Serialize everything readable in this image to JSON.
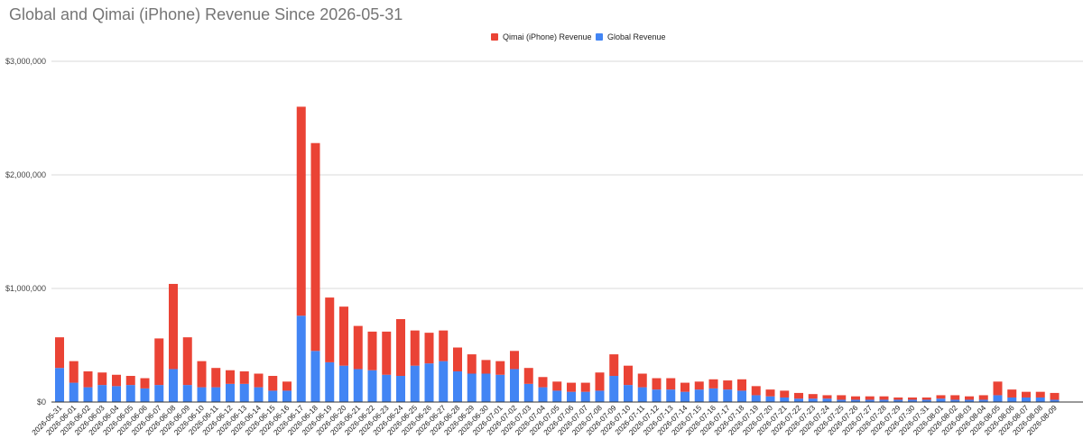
{
  "chart_data": {
    "type": "bar",
    "stacked": true,
    "title": "Global and Qimai (iPhone) Revenue Since 2026-05-31",
    "xlabel": "",
    "ylabel": "",
    "ylim": [
      0,
      3000000
    ],
    "yticks": [
      0,
      1000000,
      2000000,
      3000000
    ],
    "ytick_labels": [
      "$0",
      "$1,000,000",
      "$2,000,000",
      "$3,000,000"
    ],
    "grid": true,
    "legend_position": "top-center",
    "categories": [
      "2026-05-31",
      "2026-06-01",
      "2026-06-02",
      "2026-06-03",
      "2026-06-04",
      "2026-06-05",
      "2026-06-06",
      "2026-06-07",
      "2026-06-08",
      "2026-06-09",
      "2026-06-10",
      "2026-06-11",
      "2026-06-12",
      "2026-06-13",
      "2026-06-14",
      "2026-06-15",
      "2026-06-16",
      "2026-06-17",
      "2026-06-18",
      "2026-06-19",
      "2026-06-20",
      "2026-06-21",
      "2026-06-22",
      "2026-06-23",
      "2026-06-24",
      "2026-06-25",
      "2026-06-26",
      "2026-06-27",
      "2026-06-28",
      "2026-06-29",
      "2026-06-30",
      "2026-07-01",
      "2026-07-02",
      "2026-07-03",
      "2026-07-04",
      "2026-07-05",
      "2026-07-06",
      "2026-07-07",
      "2026-07-08",
      "2026-07-09",
      "2026-07-10",
      "2026-07-11",
      "2026-07-12",
      "2026-07-13",
      "2026-07-14",
      "2026-07-15",
      "2026-07-16",
      "2026-07-17",
      "2026-07-18",
      "2026-07-19",
      "2026-07-20",
      "2026-07-21",
      "2026-07-22",
      "2026-07-23",
      "2026-07-24",
      "2026-07-25",
      "2026-07-26",
      "2026-07-27",
      "2026-07-28",
      "2026-07-29",
      "2026-07-30",
      "2026-07-31",
      "2026-08-01",
      "2026-08-02",
      "2026-08-03",
      "2026-08-04",
      "2026-08-05",
      "2026-08-06",
      "2026-08-07",
      "2026-08-08",
      "2026-08-09"
    ],
    "series": [
      {
        "name": "Global Revenue",
        "color": "#4285f4",
        "values": [
          300000,
          170000,
          130000,
          150000,
          140000,
          150000,
          120000,
          150000,
          290000,
          150000,
          130000,
          130000,
          160000,
          160000,
          130000,
          100000,
          100000,
          760000,
          450000,
          350000,
          320000,
          290000,
          280000,
          240000,
          230000,
          320000,
          340000,
          360000,
          270000,
          250000,
          250000,
          240000,
          290000,
          160000,
          130000,
          100000,
          90000,
          90000,
          100000,
          230000,
          150000,
          130000,
          110000,
          110000,
          90000,
          110000,
          120000,
          110000,
          100000,
          60000,
          50000,
          40000,
          30000,
          30000,
          30000,
          20000,
          20000,
          20000,
          20000,
          20000,
          20000,
          20000,
          30000,
          20000,
          20000,
          20000,
          60000,
          40000,
          40000,
          40000,
          20000
        ]
      },
      {
        "name": "Qimai (iPhone) Revenue",
        "color": "#ea4335",
        "values": [
          270000,
          190000,
          140000,
          110000,
          100000,
          80000,
          90000,
          410000,
          750000,
          420000,
          230000,
          170000,
          120000,
          110000,
          120000,
          130000,
          80000,
          1840000,
          1830000,
          570000,
          520000,
          380000,
          340000,
          380000,
          500000,
          310000,
          270000,
          270000,
          210000,
          170000,
          120000,
          120000,
          160000,
          140000,
          90000,
          80000,
          80000,
          80000,
          160000,
          190000,
          170000,
          120000,
          100000,
          100000,
          80000,
          70000,
          80000,
          80000,
          100000,
          80000,
          60000,
          60000,
          50000,
          40000,
          30000,
          40000,
          30000,
          30000,
          30000,
          20000,
          20000,
          20000,
          30000,
          40000,
          30000,
          40000,
          120000,
          70000,
          50000,
          50000,
          60000
        ]
      }
    ]
  }
}
